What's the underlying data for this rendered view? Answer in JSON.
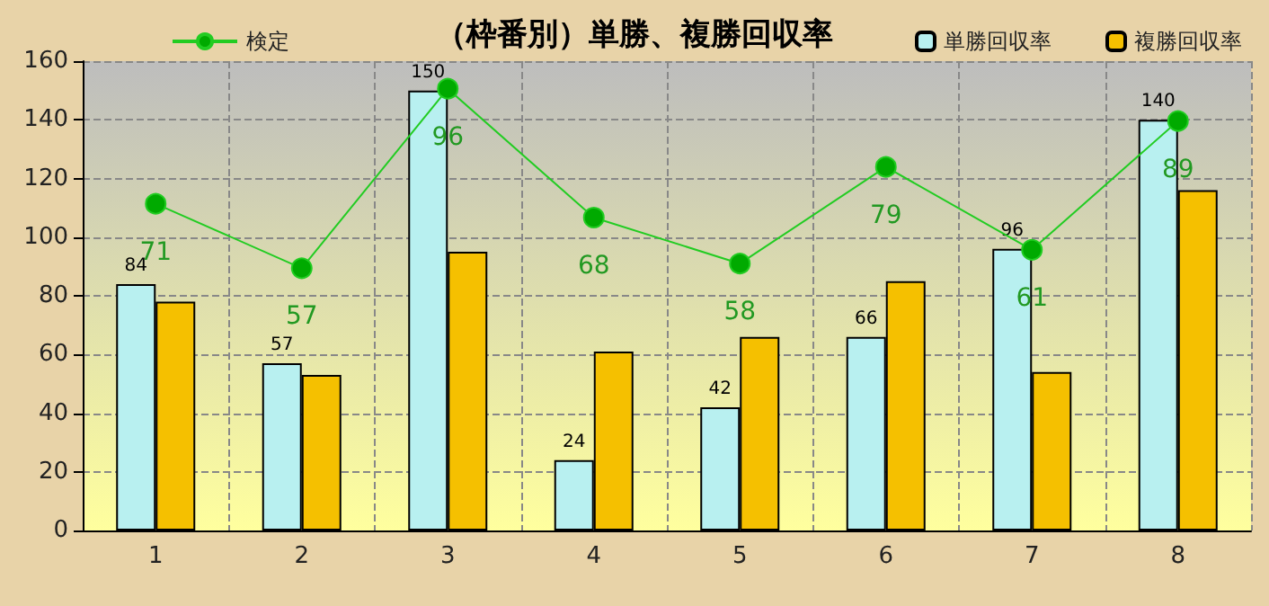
{
  "chart_data": {
    "type": "bar",
    "title": "（枠番別）単勝、複勝回収率",
    "categories": [
      "1",
      "2",
      "3",
      "4",
      "5",
      "6",
      "7",
      "8"
    ],
    "series": [
      {
        "name": "単勝回収率",
        "color": "#b8f0f0",
        "values": [
          84,
          57,
          150,
          24,
          42,
          66,
          96,
          140
        ],
        "value_labels": [
          "84",
          "57",
          "150",
          "24",
          "42",
          "66",
          "96",
          "140"
        ]
      },
      {
        "name": "複勝回収率",
        "color": "#f5c000",
        "values": [
          78,
          53,
          95,
          61,
          66,
          85,
          54,
          116
        ]
      },
      {
        "name": "検定",
        "type": "line",
        "axis": "y2",
        "color": "#22cc22",
        "values": [
          71,
          57,
          96,
          68,
          58,
          79,
          61,
          89
        ],
        "value_labels": [
          "71",
          "57",
          "96",
          "68",
          "58",
          "79",
          "61",
          "89"
        ]
      }
    ],
    "ylim": [
      0,
      160
    ],
    "yticks": [
      0,
      20,
      40,
      60,
      80,
      100,
      120,
      140,
      160
    ],
    "y2lim": [
      0,
      102
    ],
    "grid": true,
    "legend": "top",
    "marker": "circle"
  }
}
